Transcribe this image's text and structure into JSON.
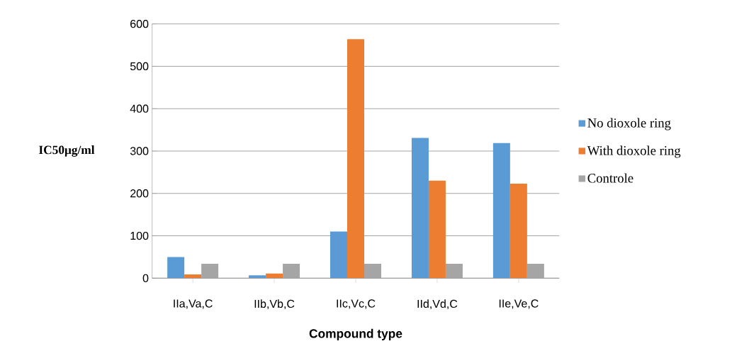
{
  "chart_data": {
    "type": "bar",
    "xlabel": "Compound type",
    "ylabel": "IC50μg/ml",
    "categories": [
      "IIa,Va,C",
      "IIb,Vb,C",
      "IIc,Vc,C",
      "IId,Vd,C",
      "IIe,Ve,C"
    ],
    "series": [
      {
        "name": "No dioxole ring",
        "color": "#5b9bd5",
        "values": [
          50,
          7,
          110,
          331,
          319
        ]
      },
      {
        "name": "With dioxole ring",
        "color": "#ed7d31",
        "values": [
          9,
          11,
          564,
          230,
          223
        ]
      },
      {
        "name": "Controle",
        "color": "#a5a5a5",
        "values": [
          34,
          34,
          34,
          34,
          34
        ]
      }
    ],
    "ylim": [
      0,
      600
    ],
    "yticks": [
      0,
      100,
      200,
      300,
      400,
      500,
      600
    ],
    "grid": "y",
    "legend": "right"
  }
}
